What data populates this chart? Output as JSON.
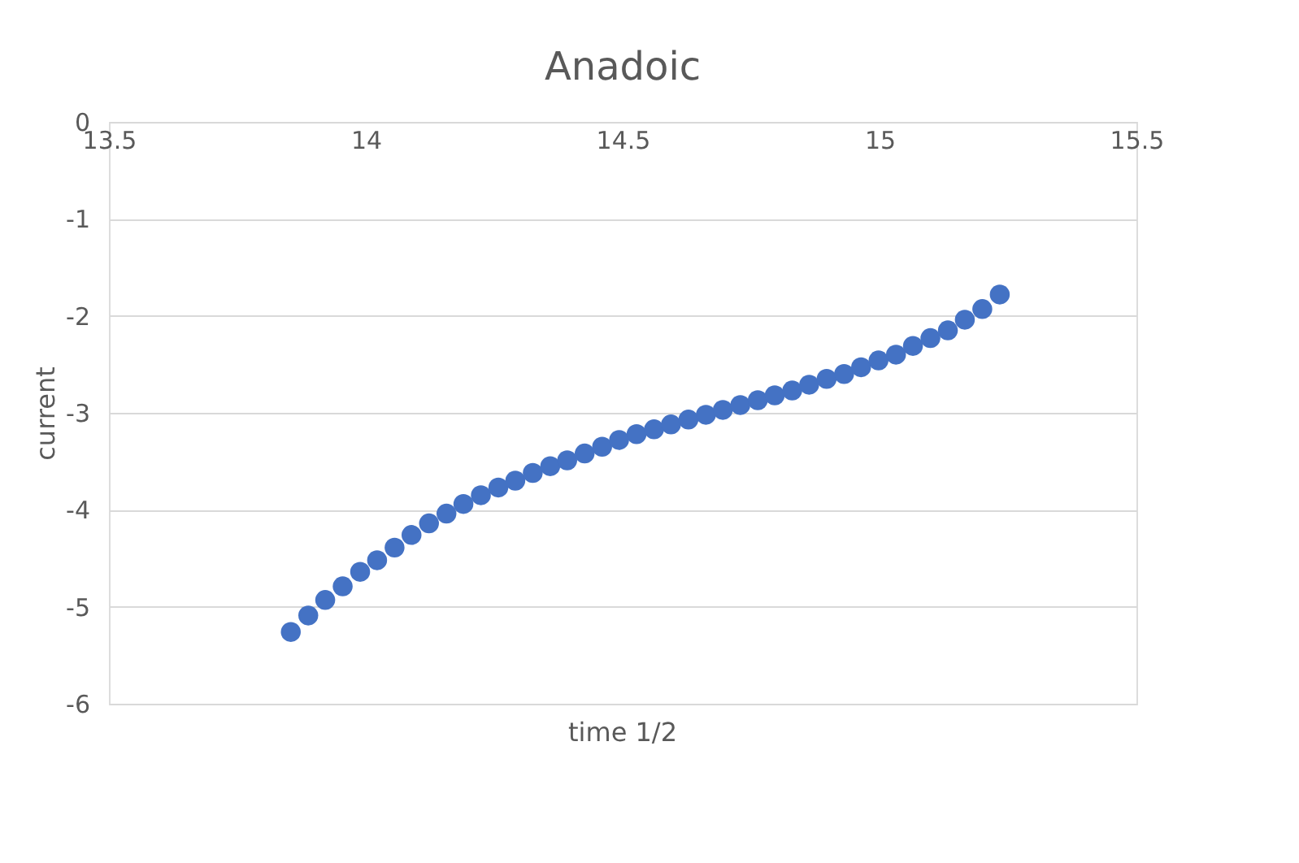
{
  "chart_data": {
    "type": "scatter",
    "title": "Anadoic",
    "xlabel": "time 1/2",
    "ylabel": "current",
    "x": [
      13.854,
      13.888,
      13.921,
      13.955,
      13.989,
      14.022,
      14.056,
      14.089,
      14.123,
      14.157,
      14.19,
      14.224,
      14.258,
      14.291,
      14.325,
      14.359,
      14.392,
      14.426,
      14.46,
      14.493,
      14.527,
      14.561,
      14.594,
      14.628,
      14.662,
      14.695,
      14.729,
      14.763,
      14.796,
      14.83,
      14.863,
      14.897,
      14.931,
      14.964,
      14.998,
      15.032,
      15.065,
      15.099,
      15.133,
      15.166,
      15.2,
      15.234
    ],
    "series": [
      {
        "color": "#4472c4",
        "values": [
          -5.26,
          -5.09,
          -4.93,
          -4.79,
          -4.64,
          -4.52,
          -4.39,
          -4.26,
          -4.14,
          -4.04,
          -3.94,
          -3.85,
          -3.77,
          -3.7,
          -3.62,
          -3.55,
          -3.49,
          -3.42,
          -3.35,
          -3.28,
          -3.22,
          -3.17,
          -3.12,
          -3.07,
          -3.02,
          -2.97,
          -2.92,
          -2.87,
          -2.82,
          -2.77,
          -2.71,
          -2.65,
          -2.6,
          -2.53,
          -2.46,
          -2.4,
          -2.31,
          -2.23,
          -2.15,
          -2.04,
          -1.93,
          -1.78
        ]
      }
    ],
    "xlim": [
      13.5,
      15.5
    ],
    "xticks": [
      13.5,
      14,
      14.5,
      15,
      15.5
    ],
    "ylim": [
      -6,
      0
    ],
    "yticks": [
      -6,
      -5,
      -4,
      -3,
      -2,
      -1,
      0
    ],
    "grid": "y",
    "marker": "circle"
  }
}
